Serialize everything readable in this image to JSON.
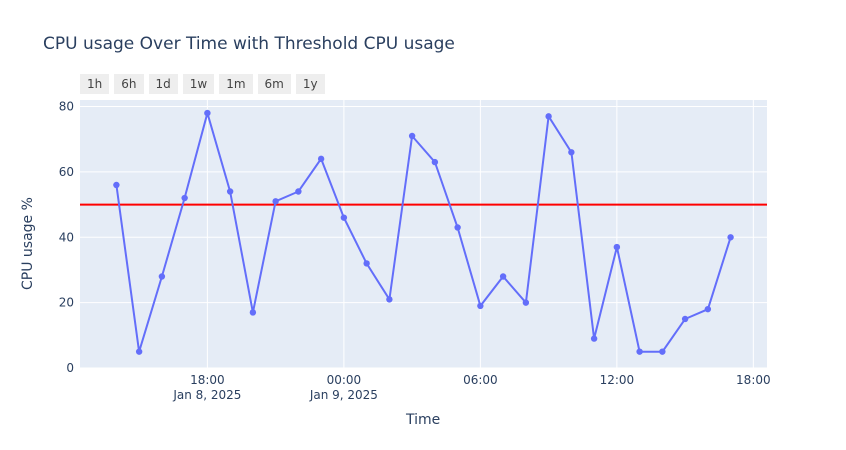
{
  "chart_data": {
    "type": "line",
    "title": "CPU usage Over Time with Threshold CPU usage",
    "xlabel": "Time",
    "ylabel": "CPU usage %",
    "x_start": "2025-01-08T14:00",
    "x_step_hours": 1,
    "values": [
      56,
      5,
      28,
      52,
      78,
      54,
      17,
      51,
      54,
      64,
      46,
      32,
      21,
      71,
      63,
      43,
      19,
      28,
      20,
      77,
      66,
      9,
      37,
      5,
      5,
      15,
      18,
      40
    ],
    "threshold": 50,
    "ylim": [
      0,
      82
    ],
    "yticks": [
      0,
      20,
      40,
      60,
      80
    ],
    "xticks": [
      {
        "t": "2025-01-08T18:00",
        "label": "18:00",
        "sub": "Jan 8, 2025"
      },
      {
        "t": "2025-01-09T00:00",
        "label": "00:00",
        "sub": "Jan 9, 2025"
      },
      {
        "t": "2025-01-09T06:00",
        "label": "06:00",
        "sub": ""
      },
      {
        "t": "2025-01-09T12:00",
        "label": "12:00",
        "sub": ""
      },
      {
        "t": "2025-01-09T18:00",
        "label": "18:00",
        "sub": ""
      }
    ],
    "line_color": "#636efa",
    "threshold_color": "#ff0000",
    "plot_bg": "#e5ecf6",
    "grid": true
  },
  "range_selector": [
    "1h",
    "6h",
    "1d",
    "1w",
    "1m",
    "6m",
    "1y"
  ]
}
